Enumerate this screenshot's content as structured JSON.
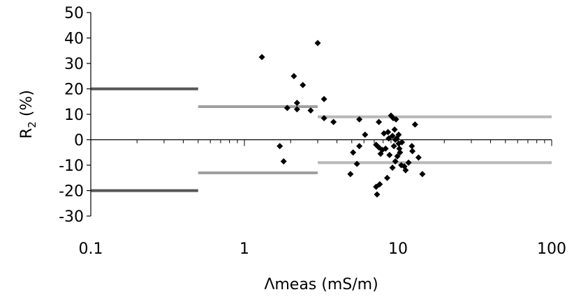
{
  "chart_data": {
    "type": "scatter",
    "x_scale": "log",
    "xlim": [
      0.1,
      100
    ],
    "ylim": [
      -30,
      50
    ],
    "x_ticks": [
      0.1,
      1,
      10,
      100
    ],
    "x_tick_labels": [
      "0.1",
      "1",
      "10",
      "100"
    ],
    "y_ticks": [
      -30,
      -20,
      -10,
      0,
      10,
      20,
      30,
      40,
      50
    ],
    "y_tick_labels": [
      "-30",
      "-20",
      "-10",
      "0",
      "10",
      "20",
      "30",
      "40",
      "50"
    ],
    "xlabel": "Λmeas (mS/m)",
    "ylabel": {
      "main": "R",
      "sub": "2",
      "suffix": " (%)"
    },
    "grid": false,
    "legend": "none",
    "points": [
      [
        1.3,
        32.5
      ],
      [
        3.0,
        38.0
      ],
      [
        2.1,
        25.0
      ],
      [
        2.4,
        21.5
      ],
      [
        2.2,
        14.5
      ],
      [
        3.3,
        16.0
      ],
      [
        1.9,
        12.5
      ],
      [
        2.2,
        12.0
      ],
      [
        2.7,
        11.5
      ],
      [
        3.3,
        8.5
      ],
      [
        3.8,
        7.0
      ],
      [
        5.6,
        8.0
      ],
      [
        7.5,
        7.0
      ],
      [
        8.1,
        2.5
      ],
      [
        8.6,
        3.0
      ],
      [
        6.1,
        2.0
      ],
      [
        9.0,
        9.5
      ],
      [
        9.3,
        8.5
      ],
      [
        9.7,
        8.0
      ],
      [
        9.5,
        4.0
      ],
      [
        9.2,
        1.5
      ],
      [
        9.8,
        0.5
      ],
      [
        10.1,
        2.0
      ],
      [
        8.7,
        0.5
      ],
      [
        12.9,
        6.0
      ],
      [
        1.7,
        -2.5
      ],
      [
        1.8,
        -8.5
      ],
      [
        5.1,
        -5.0
      ],
      [
        5.6,
        -2.5
      ],
      [
        5.4,
        -9.5
      ],
      [
        4.9,
        -13.5
      ],
      [
        7.2,
        -2.0
      ],
      [
        7.5,
        -3.0
      ],
      [
        7.9,
        -4.0
      ],
      [
        7.7,
        -5.5
      ],
      [
        8.3,
        -3.5
      ],
      [
        8.8,
        -6.0
      ],
      [
        8.5,
        -15.0
      ],
      [
        7.2,
        -18.5
      ],
      [
        7.6,
        -17.5
      ],
      [
        7.3,
        -21.5
      ],
      [
        9.2,
        -11.0
      ],
      [
        9.6,
        -8.5
      ],
      [
        9.9,
        -6.5
      ],
      [
        10.1,
        -1.5
      ],
      [
        10.3,
        -5.0
      ],
      [
        10.6,
        -1.0
      ],
      [
        10.5,
        -10.0
      ],
      [
        11.0,
        -10.5
      ],
      [
        11.2,
        -12.0
      ],
      [
        11.7,
        -9.0
      ],
      [
        12.3,
        -2.5
      ],
      [
        12.4,
        -4.5
      ],
      [
        13.6,
        -7.0
      ],
      [
        14.4,
        -13.5
      ],
      [
        9.4,
        -2.5
      ],
      [
        10.2,
        -3.5
      ],
      [
        9.6,
        0.0
      ]
    ],
    "bands": [
      {
        "x": [
          0.1,
          0.5
        ],
        "y": 20,
        "color": "#555555"
      },
      {
        "x": [
          0.1,
          0.5
        ],
        "y": -20,
        "color": "#555555"
      },
      {
        "x": [
          0.5,
          3.0
        ],
        "y": 13,
        "color": "#a0a0a0"
      },
      {
        "x": [
          0.5,
          3.0
        ],
        "y": -13,
        "color": "#a0a0a0"
      },
      {
        "x": [
          3.0,
          100
        ],
        "y": 9,
        "color": "#b8b8b8"
      },
      {
        "x": [
          3.0,
          100
        ],
        "y": -9,
        "color": "#b8b8b8"
      }
    ],
    "marker_color": "#000000"
  }
}
